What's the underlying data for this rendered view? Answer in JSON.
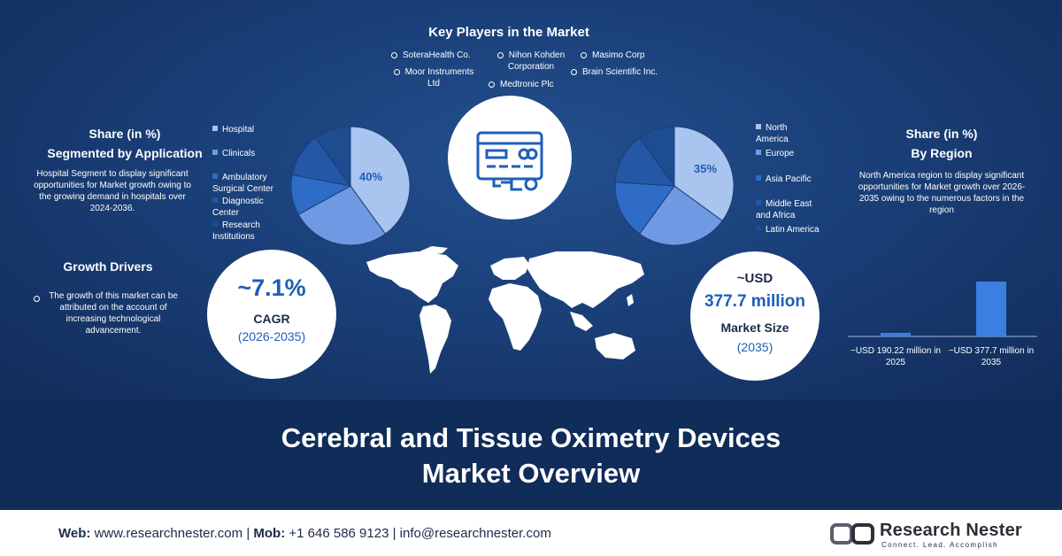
{
  "key_players": {
    "title": "Key Players in the Market",
    "items": [
      "SoteraHealth Co.",
      "Nihon Kohden Corporation",
      "Masimo Corp",
      "Moor Instruments Ltd",
      "Brain Scientific Inc.",
      "Medtronic Plc"
    ]
  },
  "application": {
    "title_line1": "Share (in %)",
    "title_line2": "Segmented by Application",
    "description": "Hospital Segment to display significant opportunities for Market growth owing to the growing demand in hospitals over 2024-2036.",
    "legend": [
      {
        "label": "Hospital",
        "color": "#a9c4ef"
      },
      {
        "label": "Clinicals",
        "color": "#6f9ae3"
      },
      {
        "label": "Ambulatory Surgical Center",
        "color": "#2f6cc7"
      },
      {
        "label": "Diagnostic Center",
        "color": "#2457a6"
      },
      {
        "label": "Research Institutions",
        "color": "#1e4c91"
      }
    ],
    "pie_label": "40%"
  },
  "region": {
    "title_line1": "Share (in %)",
    "title_line2": "By Region",
    "description": "North America region to display significant opportunities for Market growth over 2026-2035 owing to the numerous factors in the region",
    "legend": [
      {
        "label": "North America",
        "color": "#a9c4ef"
      },
      {
        "label": "Europe",
        "color": "#6f9ae3"
      },
      {
        "label": "Asia Pacific",
        "color": "#2f6cc7"
      },
      {
        "label": "Middle East and Africa",
        "color": "#2457a6"
      },
      {
        "label": "Latin America",
        "color": "#1e4c91"
      }
    ],
    "pie_label": "35%"
  },
  "growth": {
    "title": "Growth Drivers",
    "text": "The growth of this market can be attributed on the account of increasing technological advancement."
  },
  "cagr": {
    "value": "~7.1%",
    "label": "CAGR",
    "period": "(2026-2035)"
  },
  "market_size": {
    "prefix": "~USD",
    "value": "377.7 million",
    "label": "Market Size",
    "year": "(2035)"
  },
  "chart_data": [
    {
      "type": "pie",
      "categories": [
        "Hospital",
        "Clinicals",
        "Ambulatory Surgical Center",
        "Diagnostic Center",
        "Research Institutions"
      ],
      "values": [
        40,
        27,
        11,
        12,
        10
      ],
      "data_labels": [
        "40%"
      ]
    },
    {
      "type": "pie",
      "categories": [
        "North America",
        "Europe",
        "Asia Pacific",
        "Middle East and Africa",
        "Latin America"
      ],
      "values": [
        35,
        25,
        16,
        14,
        10
      ],
      "data_labels": [
        "35%"
      ]
    },
    {
      "type": "bar",
      "categories": [
        "~USD 190.22 million in 2025",
        "~USD 377.7 million in 2035"
      ],
      "values": [
        190.22,
        377.7
      ]
    }
  ],
  "bar_labels": [
    "~USD 190.22 million in 2025",
    "~USD 377.7 million in 2035"
  ],
  "band": {
    "line1": "Cerebral and Tissue Oximetry Devices",
    "line2": "Market Overview"
  },
  "footer": {
    "web_label": "Web:",
    "web": "www.researchnester.com",
    "mob_label": "Mob:",
    "mob": "+1 646 586 9123",
    "email": "info@researchnester.com",
    "logo_name": "Research Nester",
    "logo_tag": "Connect. Lead. Accomplish"
  },
  "colors": {
    "bar": "#3b7fe0",
    "accent_blue": "#1d5fb8",
    "text_dark": "#1c2b4a"
  }
}
